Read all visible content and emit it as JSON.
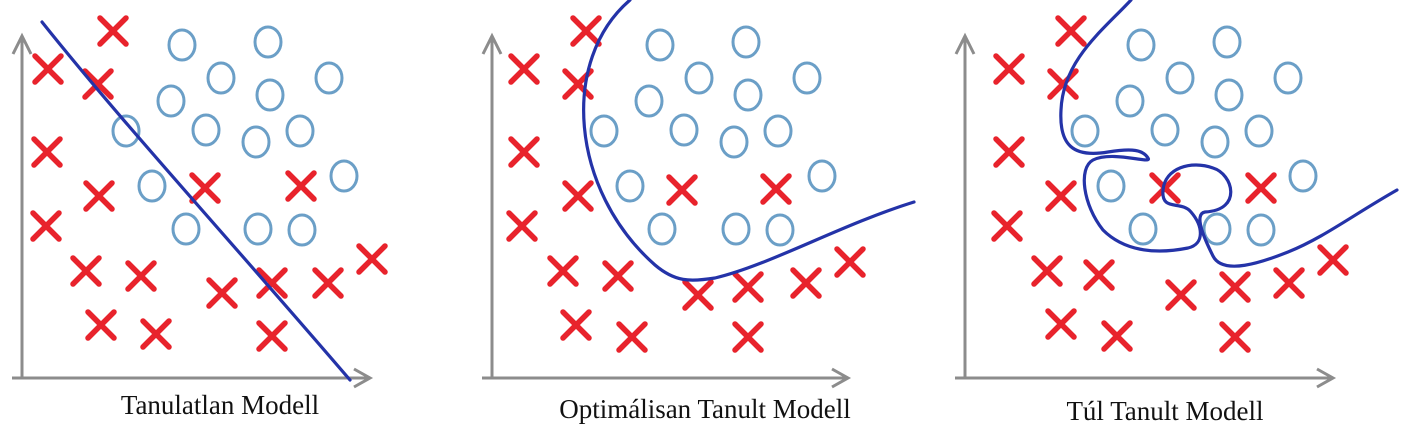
{
  "colors": {
    "cross": "#e8232c",
    "circle": "#6b9fc7",
    "boundary": "#2433a8",
    "axis": "#8c8c8c"
  },
  "panels": [
    {
      "name": "underfit",
      "caption": "Tanulatlan Modell"
    },
    {
      "name": "optimal",
      "caption": "Optimálisan Tanult Modell"
    },
    {
      "name": "overfit",
      "caption": "Túl Tanult Modell"
    }
  ]
}
